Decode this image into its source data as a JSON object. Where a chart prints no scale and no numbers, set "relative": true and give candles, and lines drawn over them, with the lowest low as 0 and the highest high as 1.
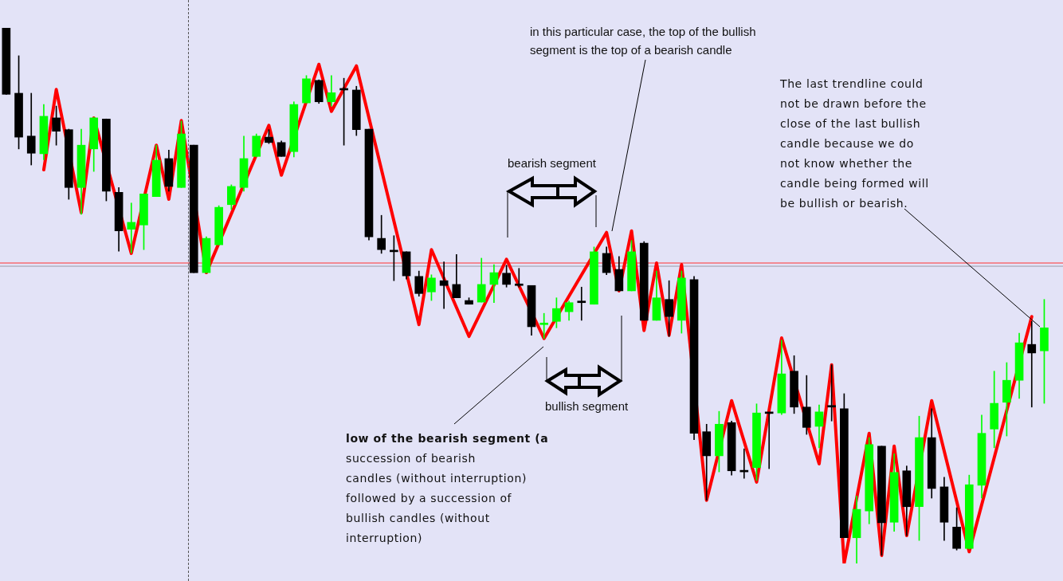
{
  "chart_data": {
    "type": "candlestick",
    "relative": true,
    "legend": false,
    "categories": [
      null,
      null,
      null,
      null,
      null,
      null,
      null,
      null,
      null,
      null,
      null,
      null,
      null,
      null,
      null,
      null,
      null,
      null,
      null,
      null,
      null,
      null,
      null,
      null,
      null,
      null,
      null,
      null,
      null,
      null,
      null,
      null,
      null,
      null,
      null,
      null,
      null,
      null,
      null,
      null,
      null,
      null,
      null,
      null,
      null,
      null,
      null,
      null,
      null,
      null,
      null,
      null,
      null,
      null,
      null,
      null,
      null,
      null,
      null,
      null,
      null,
      null,
      null,
      null,
      null,
      null,
      null,
      null,
      null,
      null,
      null,
      null,
      null,
      null,
      null,
      null,
      null,
      null,
      null,
      null,
      null,
      null,
      null,
      null
    ],
    "ohlc": [
      [
        1.0,
        1.0,
        0.876,
        0.876
      ],
      [
        0.878,
        0.948,
        0.774,
        0.796
      ],
      [
        0.798,
        0.878,
        0.744,
        0.766
      ],
      [
        0.765,
        0.857,
        0.754,
        0.835
      ],
      [
        0.832,
        0.854,
        0.781,
        0.807
      ],
      [
        0.81,
        0.811,
        0.68,
        0.702
      ],
      [
        0.702,
        0.811,
        0.652,
        0.781
      ],
      [
        0.774,
        0.833,
        0.732,
        0.832
      ],
      [
        0.83,
        0.83,
        0.677,
        0.695
      ],
      [
        0.693,
        0.702,
        0.583,
        0.621
      ],
      [
        0.624,
        0.673,
        0.58,
        0.637
      ],
      [
        0.632,
        0.69,
        0.586,
        0.69
      ],
      [
        0.685,
        0.781,
        0.685,
        0.753
      ],
      [
        0.756,
        0.772,
        0.695,
        0.704
      ],
      [
        0.702,
        0.826,
        0.702,
        0.802
      ],
      [
        0.781,
        0.781,
        0.543,
        0.543
      ],
      [
        0.543,
        0.61,
        0.543,
        0.607
      ],
      [
        0.595,
        0.668,
        0.595,
        0.665
      ],
      [
        0.67,
        0.707,
        0.661,
        0.704
      ],
      [
        0.702,
        0.798,
        0.695,
        0.756
      ],
      [
        0.76,
        0.802,
        0.759,
        0.798
      ],
      [
        0.796,
        0.81,
        0.784,
        0.786
      ],
      [
        0.786,
        0.789,
        0.76,
        0.76
      ],
      [
        0.769,
        0.862,
        0.759,
        0.857
      ],
      [
        0.86,
        0.911,
        0.86,
        0.905
      ],
      [
        0.902,
        0.903,
        0.859,
        0.862
      ],
      [
        0.862,
        0.911,
        0.854,
        0.879
      ],
      [
        0.884,
        0.906,
        0.781,
        0.884
      ],
      [
        0.884,
        0.891,
        0.799,
        0.81
      ],
      [
        0.811,
        0.811,
        0.604,
        0.61
      ],
      [
        0.607,
        0.65,
        0.579,
        0.586
      ],
      [
        0.582,
        0.612,
        0.528,
        0.582
      ],
      [
        0.582,
        0.582,
        0.531,
        0.537
      ],
      [
        0.536,
        0.546,
        0.499,
        0.504
      ],
      [
        0.507,
        0.539,
        0.491,
        0.533
      ],
      [
        0.528,
        0.563,
        0.476,
        0.519
      ],
      [
        0.521,
        0.577,
        0.496,
        0.496
      ],
      [
        0.491,
        0.496,
        0.484,
        0.484
      ],
      [
        0.488,
        0.57,
        0.488,
        0.521
      ],
      [
        0.521,
        0.558,
        0.487,
        0.543
      ],
      [
        0.542,
        0.557,
        0.516,
        0.521
      ],
      [
        0.519,
        0.551,
        0.516,
        0.519
      ],
      [
        0.519,
        0.519,
        0.426,
        0.442
      ],
      [
        0.446,
        0.467,
        0.42,
        0.448
      ],
      [
        0.452,
        0.496,
        0.44,
        0.476
      ],
      [
        0.47,
        0.49,
        0.454,
        0.487
      ],
      [
        0.487,
        0.516,
        0.454,
        0.487
      ],
      [
        0.484,
        0.591,
        0.484,
        0.582
      ],
      [
        0.579,
        0.591,
        0.539,
        0.543
      ],
      [
        0.549,
        0.573,
        0.509,
        0.509
      ],
      [
        0.509,
        0.603,
        0.509,
        0.582
      ],
      [
        0.598,
        0.601,
        0.454,
        0.454
      ],
      [
        0.454,
        0.546,
        0.454,
        0.496
      ],
      [
        0.493,
        0.528,
        0.424,
        0.461
      ],
      [
        0.454,
        0.546,
        0.43,
        0.533
      ],
      [
        0.53,
        0.536,
        0.231,
        0.243
      ],
      [
        0.246,
        0.26,
        0.118,
        0.201
      ],
      [
        0.201,
        0.284,
        0.171,
        0.26
      ],
      [
        0.263,
        0.266,
        0.165,
        0.173
      ],
      [
        0.171,
        0.214,
        0.159,
        0.171
      ],
      [
        0.179,
        0.298,
        0.155,
        0.281
      ],
      [
        0.28,
        0.281,
        0.177,
        0.28
      ],
      [
        0.281,
        0.417,
        0.278,
        0.354
      ],
      [
        0.359,
        0.388,
        0.28,
        0.292
      ],
      [
        0.292,
        0.351,
        0.241,
        0.254
      ],
      [
        0.256,
        0.296,
        0.216,
        0.283
      ],
      [
        0.292,
        0.371,
        0.266,
        0.292
      ],
      [
        0.289,
        0.317,
        0.048,
        0.048
      ],
      [
        0.048,
        0.126,
        0.0,
        0.101
      ],
      [
        0.098,
        0.235,
        0.074,
        0.222
      ],
      [
        0.219,
        0.219,
        0.015,
        0.076
      ],
      [
        0.077,
        0.205,
        0.06,
        0.17
      ],
      [
        0.173,
        0.182,
        0.052,
        0.106
      ],
      [
        0.106,
        0.275,
        0.043,
        0.235
      ],
      [
        0.235,
        0.289,
        0.122,
        0.14
      ],
      [
        0.143,
        0.161,
        0.043,
        0.077
      ],
      [
        0.068,
        0.104,
        0.025,
        0.028
      ],
      [
        0.028,
        0.165,
        0.027,
        0.147
      ],
      [
        0.146,
        0.277,
        0.122,
        0.243
      ],
      [
        0.251,
        0.359,
        0.216,
        0.299
      ],
      [
        0.301,
        0.375,
        0.238,
        0.342
      ],
      [
        0.342,
        0.43,
        0.308,
        0.412
      ],
      [
        0.409,
        0.452,
        0.292,
        0.393
      ],
      [
        0.397,
        0.493,
        0.299,
        0.44
      ]
    ],
    "colors": [
      "#000000",
      "#000000",
      "#000000",
      "#00ff00",
      "#000000",
      "#000000",
      "#00ff00",
      "#00ff00",
      "#000000",
      "#000000",
      "#00ff00",
      "#00ff00",
      "#00ff00",
      "#000000",
      "#00ff00",
      "#000000",
      "#00ff00",
      "#00ff00",
      "#00ff00",
      "#00ff00",
      "#00ff00",
      "#000000",
      "#000000",
      "#00ff00",
      "#00ff00",
      "#000000",
      "#00ff00",
      "#000000",
      "#000000",
      "#000000",
      "#000000",
      "#000000",
      "#000000",
      "#000000",
      "#00ff00",
      "#000000",
      "#000000",
      "#000000",
      "#00ff00",
      "#00ff00",
      "#000000",
      "#000000",
      "#000000",
      "#00ff00",
      "#00ff00",
      "#00ff00",
      "#000000",
      "#00ff00",
      "#000000",
      "#000000",
      "#00ff00",
      "#000000",
      "#00ff00",
      "#000000",
      "#00ff00",
      "#000000",
      "#000000",
      "#00ff00",
      "#000000",
      "#000000",
      "#00ff00",
      "#000000",
      "#00ff00",
      "#000000",
      "#000000",
      "#00ff00",
      "#000000",
      "#000000",
      "#00ff00",
      "#00ff00",
      "#000000",
      "#00ff00",
      "#000000",
      "#00ff00",
      "#000000",
      "#000000",
      "#000000",
      "#00ff00",
      "#00ff00",
      "#00ff00",
      "#00ff00",
      "#00ff00",
      "#000000",
      "#00ff00"
    ],
    "series": [
      {
        "type": "line",
        "color": "#ff0000",
        "values": [
          null,
          null,
          null,
          0.735,
          0.885,
          null,
          0.655,
          0.832,
          null,
          null,
          0.579,
          null,
          0.781,
          0.68,
          0.827,
          null,
          0.543,
          null,
          null,
          null,
          null,
          0.818,
          0.725,
          null,
          null,
          0.932,
          0.844,
          null,
          0.929,
          null,
          null,
          null,
          null,
          0.446,
          0.586,
          null,
          null,
          0.424,
          null,
          null,
          0.568,
          null,
          null,
          0.42,
          null,
          null,
          null,
          null,
          0.618,
          0.509,
          0.621,
          0.435,
          0.561,
          0.426,
          0.558,
          null,
          0.118,
          null,
          0.304,
          null,
          0.152,
          null,
          0.421,
          null,
          null,
          0.186,
          0.371,
          0.0,
          null,
          0.243,
          0.015,
          0.219,
          0.052,
          null,
          0.304,
          null,
          null,
          0.022,
          null,
          null,
          null,
          null,
          0.461,
          null
        ]
      }
    ],
    "ref_lines": [
      {
        "axis": "y",
        "value": 0.561,
        "color": "#ff3030"
      },
      {
        "axis": "y",
        "value": 0.555,
        "color": "#9a9aa8"
      }
    ],
    "annotations": [
      "in this particular case, the top of the bullish\nsegment is the top of a bearish candle",
      "The last trendline could\nnot be drawn before the\nclose of the last bullish\ncandle because we do\nnot know whether the\ncandle being formed will\nbe bullish or bearish.",
      "bearish segment",
      "bullish segment",
      "low of the bearish segment (a\nsuccession of bearish\ncandles (without interruption)\nfollowed by a succession of\nbullish candles (without\ninterruption)"
    ]
  }
}
